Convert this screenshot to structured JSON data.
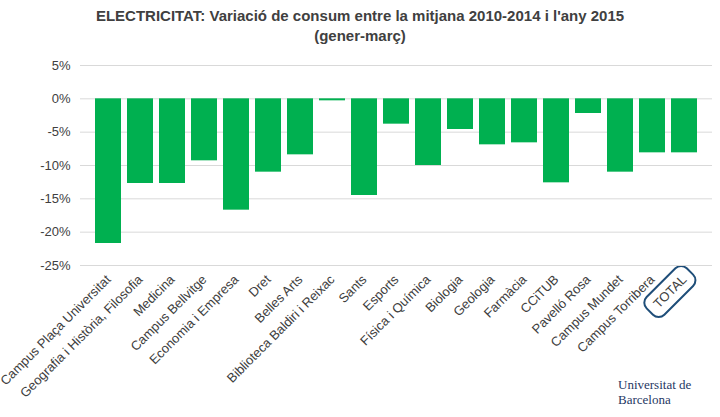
{
  "chart_data": {
    "type": "bar",
    "title": "ELECTRICITAT: Variació de consum entre la mitjana 2010-2014 i l'any 2015 (gener-març)",
    "categories": [
      "Campus Plaça Universitat",
      "Geografia i Història, Filosofia",
      "Medicina",
      "Campus Bellvitge",
      "Economia i Empresa",
      "Dret",
      "Belles Arts",
      "Biblioteca Baldiri i Reixac",
      "Sants",
      "Esports",
      "Física i Química",
      "Biologia",
      "Geologia",
      "Farmàcia",
      "CCiTUB",
      "Pavelló Rosa",
      "Campus Mundet",
      "Campus Torribera",
      "TOTAL"
    ],
    "values": [
      -21.7,
      -12.7,
      -12.7,
      -9.3,
      -16.7,
      -11.0,
      -8.4,
      -0.3,
      -14.5,
      -3.8,
      -10.0,
      -4.6,
      -6.9,
      -6.6,
      -12.6,
      -2.2,
      -11.0,
      -8.1,
      -8.1
    ],
    "color": "#00b050",
    "ylim": [
      -25,
      5
    ],
    "yticks": [
      {
        "value": 5,
        "label": "5%"
      },
      {
        "value": 0,
        "label": "0%"
      },
      {
        "value": -5,
        "label": "-5%"
      },
      {
        "value": -10,
        "label": "-10%"
      },
      {
        "value": -15,
        "label": "-15%"
      },
      {
        "value": -20,
        "label": "-20%"
      },
      {
        "value": -25,
        "label": "-25%"
      }
    ],
    "grid": true,
    "source": "Universitat de Barcelona"
  }
}
